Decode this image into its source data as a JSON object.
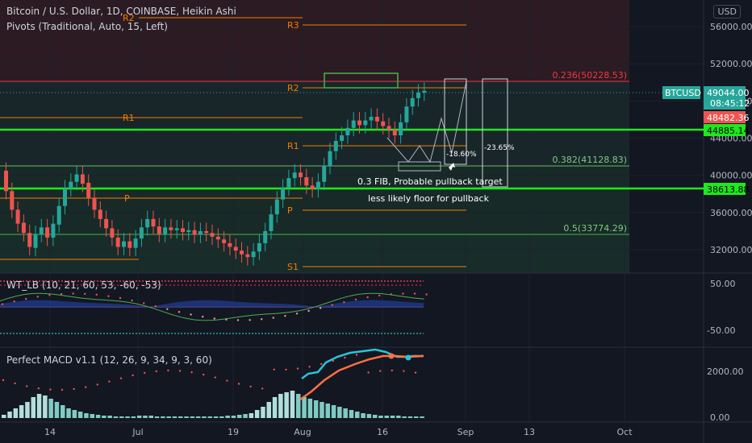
{
  "header": {
    "title": "Bitcoin / U.S. Dollar, 1D, COINBASE, Heikin Ashi",
    "pivots_label": "Pivots (Traditional, Auto, 15, Left)",
    "currency_button": "USD"
  },
  "colors": {
    "bg": "#131722",
    "up": "#26a69a",
    "down": "#ef5350",
    "pivot": "#f57c00",
    "green_line": "#1ee81e",
    "fib_red": "#f23645",
    "grid": "#1e222d"
  },
  "price_axis": {
    "ticks": [
      "56000.00",
      "52000.00",
      "48000.00",
      "44000.00",
      "40000.00",
      "36000.00",
      "32000.00"
    ],
    "labels": {
      "btcusd_name": "BTCUSD",
      "btcusd_price": "49044.00",
      "countdown": "08:45:12",
      "red_level": "48482.36",
      "green_high": "44885.14",
      "green_low": "38613.88"
    }
  },
  "x_axis": {
    "ticks": [
      "14",
      "Jul",
      "19",
      "Aug",
      "16",
      "Sep",
      "13",
      "Oct"
    ]
  },
  "pivots": [
    "R3",
    "R2",
    "R2",
    "R1",
    "R1",
    "P",
    "P",
    "S1"
  ],
  "fib": {
    "f0236": "0.236(50228.53)",
    "f0382": "0.382(41128.83)",
    "f05": "0.5(33774.29)"
  },
  "annotations": {
    "pct1": "-18.60%",
    "pct2": "-23.65%",
    "note1": "0.3 FIB, Probable pullback target",
    "note2": "less likely floor for pullback"
  },
  "wt": {
    "label": "WT_LB (10, 21, 60, 53, -60, -53)",
    "ticks": [
      "50.00",
      "-50.00"
    ]
  },
  "macd": {
    "label": "Perfect MACD v1.1 (12, 26, 9, 34, 9, 3, 60)",
    "ticks": [
      "2000.00",
      "0.00"
    ]
  },
  "chart_data": {
    "type": "candlestick",
    "title": "Bitcoin / U.S. Dollar, 1D, COINBASE, Heikin Ashi",
    "y_range": [
      30000,
      58000
    ],
    "candles": [
      {
        "o": 40500,
        "c": 38300
      },
      {
        "o": 38300,
        "c": 36300
      },
      {
        "o": 36300,
        "c": 34800
      },
      {
        "o": 34900,
        "c": 33800
      },
      {
        "o": 33800,
        "c": 32300
      },
      {
        "o": 32200,
        "c": 33700
      },
      {
        "o": 33700,
        "c": 34400
      },
      {
        "o": 34400,
        "c": 33300
      },
      {
        "o": 33300,
        "c": 34800
      },
      {
        "o": 34700,
        "c": 36700
      },
      {
        "o": 36700,
        "c": 38600
      },
      {
        "o": 38600,
        "c": 39300
      },
      {
        "o": 39300,
        "c": 40100
      },
      {
        "o": 40100,
        "c": 39100
      },
      {
        "o": 39200,
        "c": 37600
      },
      {
        "o": 37600,
        "c": 36300
      },
      {
        "o": 36300,
        "c": 35300
      },
      {
        "o": 35300,
        "c": 34300
      },
      {
        "o": 34300,
        "c": 33300
      },
      {
        "o": 33300,
        "c": 32300
      },
      {
        "o": 32300,
        "c": 32900
      },
      {
        "o": 32900,
        "c": 32200
      },
      {
        "o": 32200,
        "c": 33200
      },
      {
        "o": 33200,
        "c": 34400
      },
      {
        "o": 34400,
        "c": 35300
      },
      {
        "o": 35300,
        "c": 34500
      },
      {
        "o": 34500,
        "c": 33700
      },
      {
        "o": 33700,
        "c": 34400
      },
      {
        "o": 34400,
        "c": 34100
      },
      {
        "o": 34100,
        "c": 34300
      },
      {
        "o": 34300,
        "c": 33900
      },
      {
        "o": 33900,
        "c": 34100
      },
      {
        "o": 34100,
        "c": 33600
      },
      {
        "o": 33600,
        "c": 34000
      },
      {
        "o": 34000,
        "c": 33800
      },
      {
        "o": 33800,
        "c": 33400
      },
      {
        "o": 33400,
        "c": 33100
      },
      {
        "o": 33100,
        "c": 32700
      },
      {
        "o": 32700,
        "c": 32300
      },
      {
        "o": 32300,
        "c": 31900
      },
      {
        "o": 31900,
        "c": 31500
      },
      {
        "o": 31500,
        "c": 31200
      },
      {
        "o": 31200,
        "c": 31800
      },
      {
        "o": 31800,
        "c": 32700
      },
      {
        "o": 32700,
        "c": 34000
      },
      {
        "o": 34000,
        "c": 35800
      },
      {
        "o": 35800,
        "c": 37400
      },
      {
        "o": 37400,
        "c": 38700
      },
      {
        "o": 38700,
        "c": 39700
      },
      {
        "o": 39700,
        "c": 40300
      },
      {
        "o": 40300,
        "c": 39800
      },
      {
        "o": 39800,
        "c": 38900
      },
      {
        "o": 38900,
        "c": 38500
      },
      {
        "o": 38500,
        "c": 39300
      },
      {
        "o": 39300,
        "c": 41000
      },
      {
        "o": 41000,
        "c": 42600
      },
      {
        "o": 42600,
        "c": 43700
      },
      {
        "o": 43700,
        "c": 44300
      },
      {
        "o": 44300,
        "c": 45100
      },
      {
        "o": 45100,
        "c": 45900
      },
      {
        "o": 45900,
        "c": 45400
      },
      {
        "o": 45400,
        "c": 45900
      },
      {
        "o": 45900,
        "c": 46300
      },
      {
        "o": 46300,
        "c": 45800
      },
      {
        "o": 45800,
        "c": 45300
      },
      {
        "o": 45300,
        "c": 44900
      },
      {
        "o": 44900,
        "c": 44300
      },
      {
        "o": 44300,
        "c": 45700
      },
      {
        "o": 45700,
        "c": 47400
      },
      {
        "o": 47400,
        "c": 48300
      },
      {
        "o": 48300,
        "c": 48900
      },
      {
        "o": 48900,
        "c": 49100
      }
    ]
  }
}
